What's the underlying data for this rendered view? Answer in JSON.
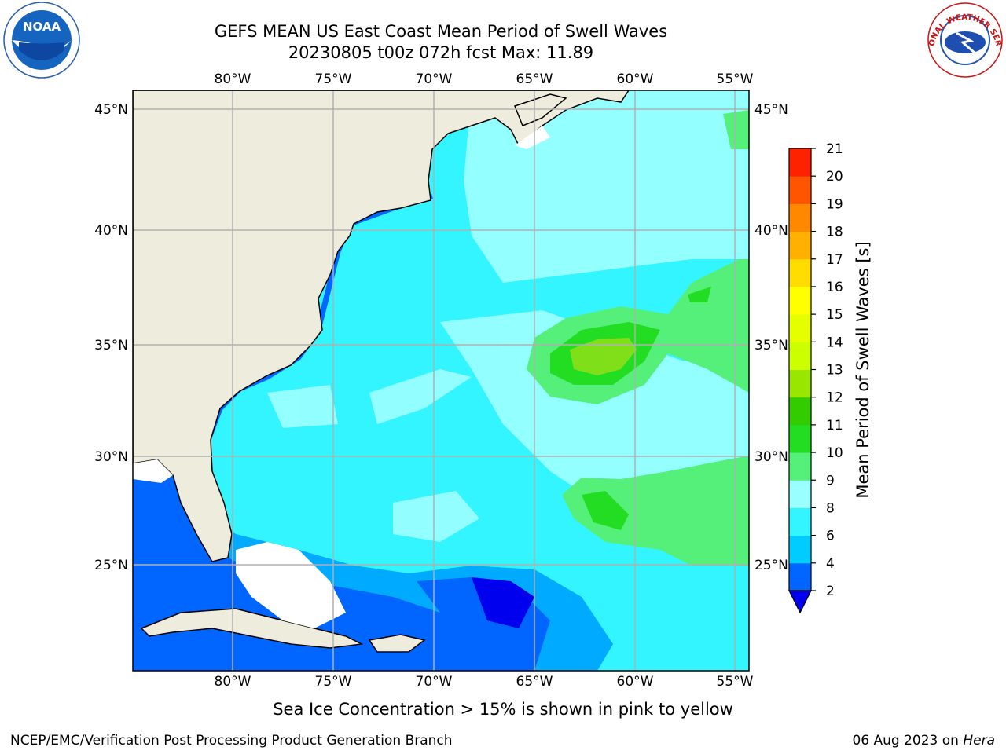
{
  "title_line1": "GEFS MEAN US East Coast Mean Period of Swell Waves",
  "title_line2": "20230805 t00z 072h fcst   Max: 11.89",
  "logos": {
    "left": "NOAA",
    "right": "NATIONAL WEATHER SERVICE"
  },
  "lon_labels": [
    "80°W",
    "75°W",
    "70°W",
    "65°W",
    "60°W",
    "55°W"
  ],
  "lat_labels": [
    "45°N",
    "40°N",
    "35°N",
    "30°N",
    "25°N"
  ],
  "map_extent": {
    "lon_min": -85,
    "lon_max": -54.6,
    "lat_min": 20.5,
    "lat_max": 45.8
  },
  "colorbar": {
    "label": "Mean Period of Swell Waves [s]",
    "ticks": [
      "2",
      "4",
      "6",
      "8",
      "9",
      "10",
      "11",
      "12",
      "13",
      "14",
      "15",
      "16",
      "17",
      "18",
      "19",
      "20",
      "21"
    ],
    "colors": [
      "#0066ff",
      "#00ccff",
      "#33f5ff",
      "#99ffff",
      "#55f07a",
      "#22dd22",
      "#33cc00",
      "#99e600",
      "#ccff00",
      "#e6ff00",
      "#ffff00",
      "#ffdd00",
      "#ffb000",
      "#ff8800",
      "#ff5500",
      "#ff2200"
    ],
    "extend_color": "#0000ee"
  },
  "colors": {
    "land": "#eeecdc",
    "ocean_base": "#33f5ff",
    "grid": "#b0b0b0"
  },
  "note": "Sea Ice Concentration > 15% is shown in pink to yellow",
  "footer_left": "NCEP/EMC/Verification Post Processing Product Generation Branch",
  "footer_date": "06 Aug 2023 on",
  "footer_host": "Hera"
}
